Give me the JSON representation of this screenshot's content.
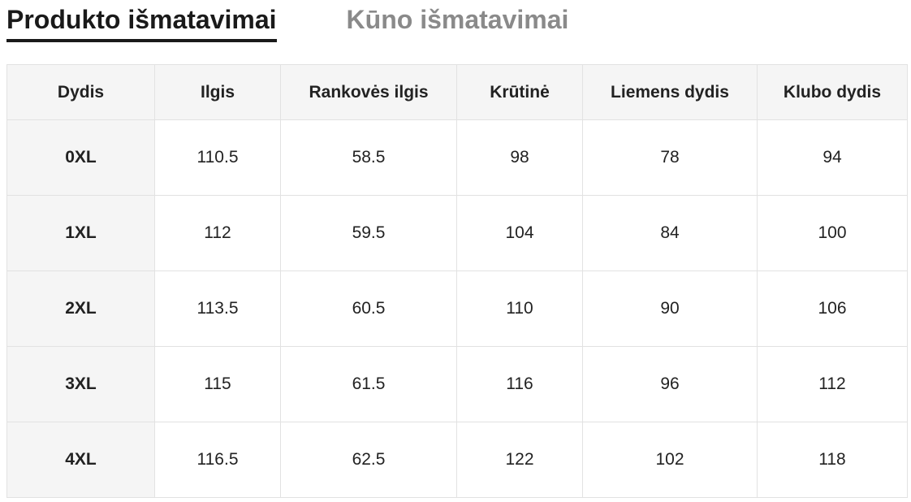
{
  "tabs": {
    "active_label": "Produkto išmatavimai",
    "inactive_label": "Kūno išmatavimai"
  },
  "table": {
    "headers": [
      "Dydis",
      "Ilgis",
      "Rankovės ilgis",
      "Krūtinė",
      "Liemens dydis",
      "Klubo dydis"
    ],
    "rows": [
      [
        "0XL",
        "110.5",
        "58.5",
        "98",
        "78",
        "94"
      ],
      [
        "1XL",
        "112",
        "59.5",
        "104",
        "84",
        "100"
      ],
      [
        "2XL",
        "113.5",
        "60.5",
        "110",
        "90",
        "106"
      ],
      [
        "3XL",
        "115",
        "61.5",
        "116",
        "96",
        "112"
      ],
      [
        "4XL",
        "116.5",
        "62.5",
        "122",
        "102",
        "118"
      ]
    ]
  }
}
